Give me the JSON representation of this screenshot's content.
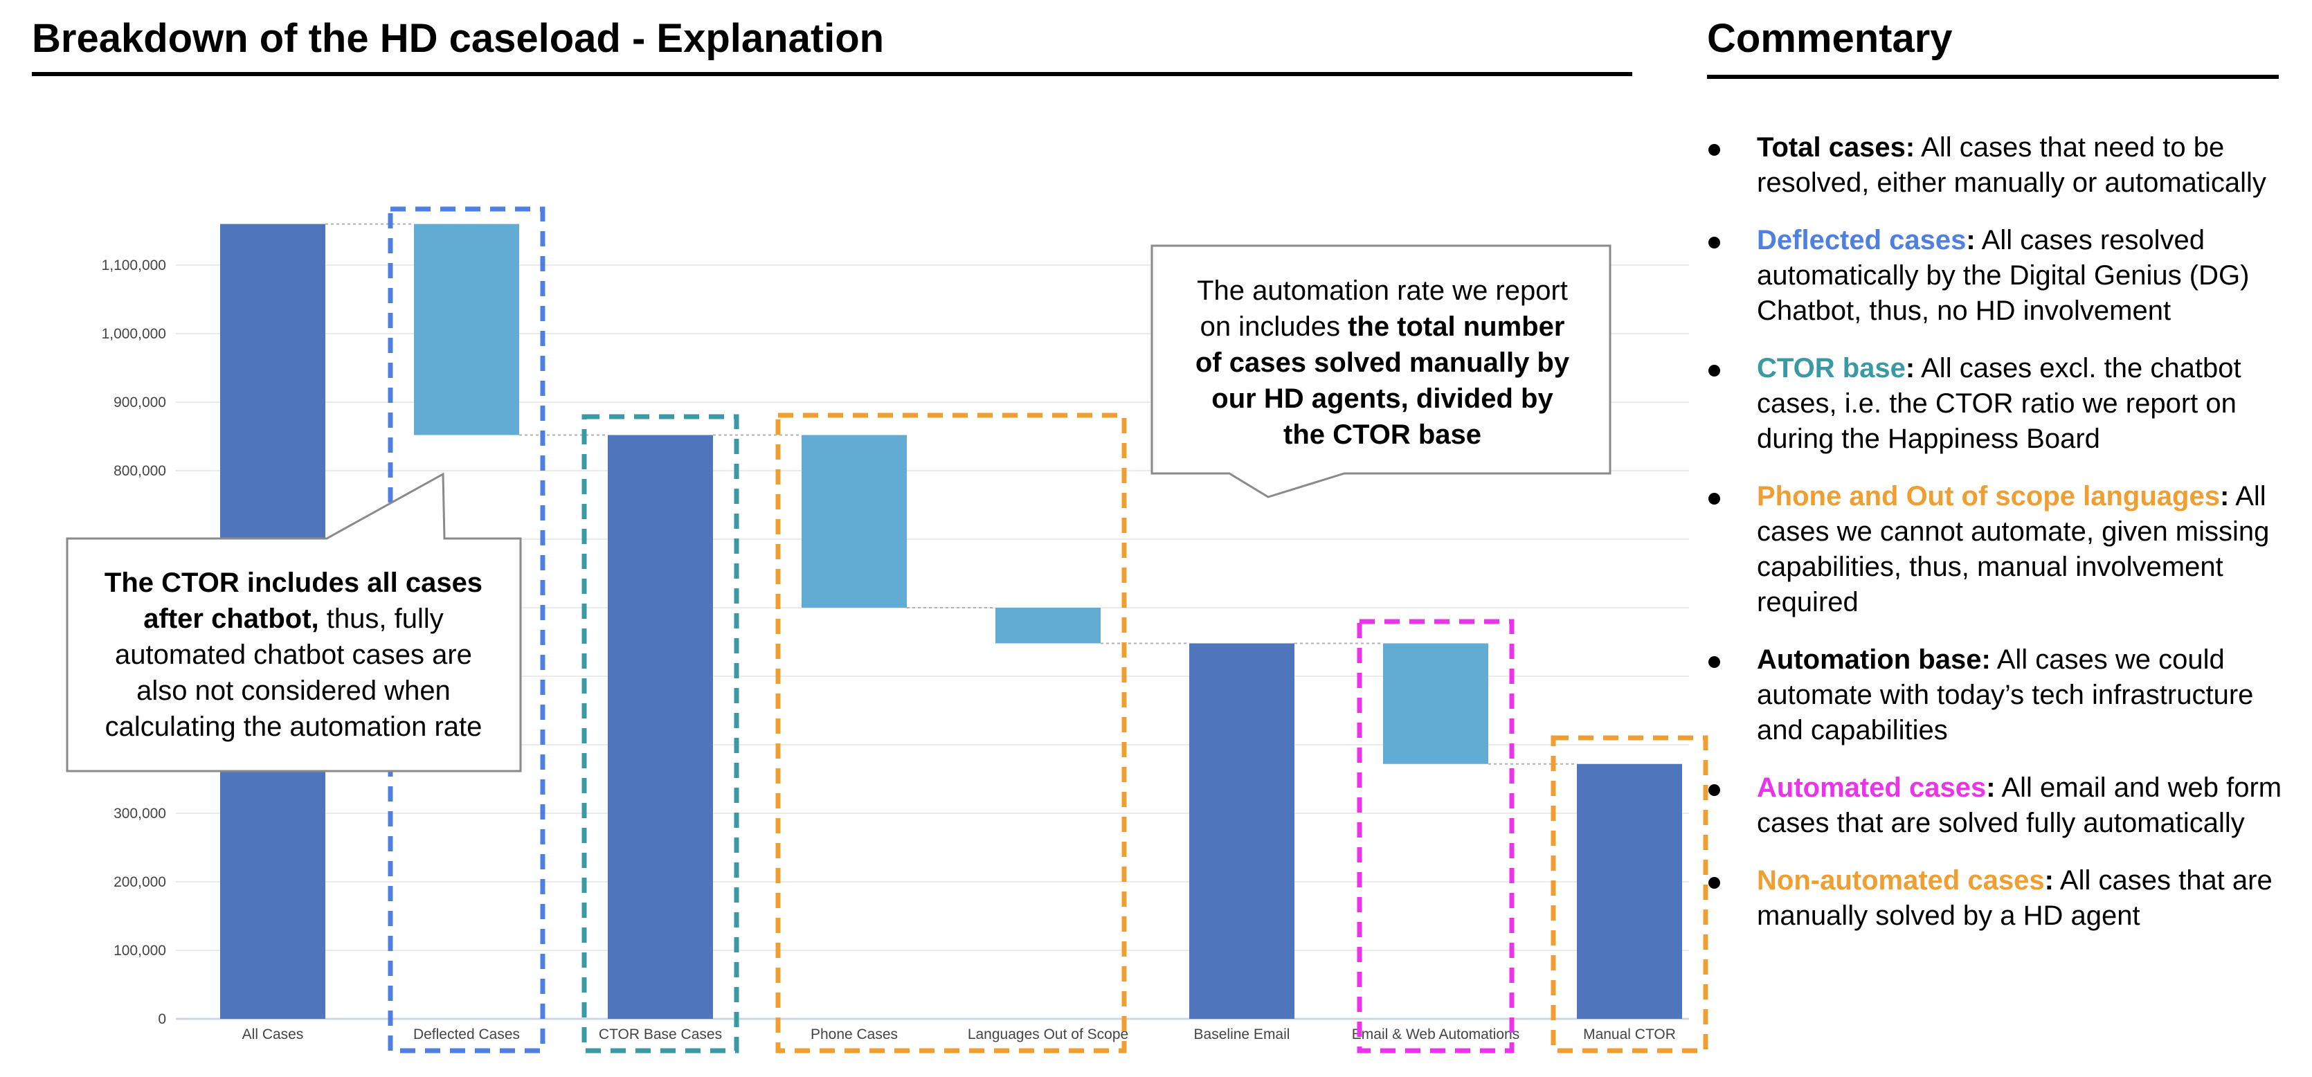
{
  "header": {
    "title": "Breakdown of the HD caseload - Explanation",
    "commentary_title": "Commentary"
  },
  "chart_data": {
    "type": "bar",
    "subtype": "waterfall",
    "ylim": [
      0,
      1200000
    ],
    "y_ticks": [
      0,
      100000,
      200000,
      300000,
      800000,
      900000,
      1000000,
      1100000
    ],
    "y_tick_labels": [
      "0",
      "100,000",
      "200,000",
      "300,000",
      "800,000",
      "900,000",
      "1,000,000",
      "1,100,000"
    ],
    "grid": true,
    "categories": [
      "All Cases",
      "Deflected Cases",
      "CTOR Base Cases",
      "Phone Cases",
      "Languages Out of Scope",
      "Baseline Email",
      "Email & Web Automations",
      "Manual CTOR"
    ],
    "bars": [
      {
        "label": "All Cases",
        "kind": "total",
        "start": 0,
        "end": 1160000
      },
      {
        "label": "Deflected Cases",
        "kind": "delta",
        "start": 1160000,
        "end": 852000
      },
      {
        "label": "CTOR Base Cases",
        "kind": "total",
        "start": 0,
        "end": 852000
      },
      {
        "label": "Phone Cases",
        "kind": "delta",
        "start": 852000,
        "end": 600000
      },
      {
        "label": "Languages Out of Scope",
        "kind": "delta",
        "start": 600000,
        "end": 548000
      },
      {
        "label": "Baseline Email",
        "kind": "total",
        "start": 0,
        "end": 548000
      },
      {
        "label": "Email & Web Automations",
        "kind": "delta",
        "start": 548000,
        "end": 372000
      },
      {
        "label": "Manual CTOR",
        "kind": "total",
        "start": 0,
        "end": 372000
      }
    ],
    "colors": {
      "total": "#4f76bc",
      "delta": "#62acd3",
      "grid": "#ebebeb",
      "axis": "#cfd4e4"
    },
    "highlight_boxes": [
      {
        "from": 1,
        "to": 1,
        "color": "#4f80e1"
      },
      {
        "from": 2,
        "to": 2,
        "color": "#3a9aa4"
      },
      {
        "from": 3,
        "to": 4,
        "color": "#ef9e31"
      },
      {
        "from": 6,
        "to": 6,
        "color": "#eb33eb"
      },
      {
        "from": 7,
        "to": 7,
        "color": "#ef9e31"
      }
    ]
  },
  "callouts": {
    "ctor": {
      "bold1": "The CTOR includes all cases",
      "bold2": "after chatbot,",
      "rest2": " thus, fully",
      "line3": "automated chatbot cases are",
      "line4": "also not considered when",
      "line5": "calculating the automation rate"
    },
    "automation": {
      "line1": "The automation rate we report",
      "line2a": "on includes ",
      "line2b": "the total number",
      "line3": "of cases solved manually by",
      "line4": "our HD agents, divided by",
      "line5": "the CTOR base"
    }
  },
  "commentary": [
    {
      "term": "Total cases:",
      "color": "#000000",
      "text": "All cases that need to be resolved, either manually or automatically"
    },
    {
      "term": "Deflected cases",
      "color": "#4f80e1",
      "colon": ":",
      "text": "All cases resolved automatically by the Digital Genius (DG) Chatbot, thus, no HD involvement"
    },
    {
      "term": "CTOR base",
      "color": "#3a9aa4",
      "colon": ":",
      "text": "All cases excl. the chatbot cases, i.e. the CTOR ratio we report on during the Happiness Board"
    },
    {
      "term": "Phone and Out of scope languages",
      "color": "#ef9e31",
      "colon": ":",
      "text": "All cases we cannot automate, given missing capabilities, thus, manual involvement required"
    },
    {
      "term": "Automation base:",
      "color": "#000000",
      "text": "All cases we could automate with today’s tech infrastructure and capabilities"
    },
    {
      "term": "Automated cases",
      "color": "#eb33eb",
      "colon": ":",
      "text": "All email and web form cases that are solved fully automatically"
    },
    {
      "term": "Non-automated cases",
      "color": "#ef9e31",
      "colon": ":",
      "text": "All cases that are manually solved by a HD agent"
    }
  ]
}
